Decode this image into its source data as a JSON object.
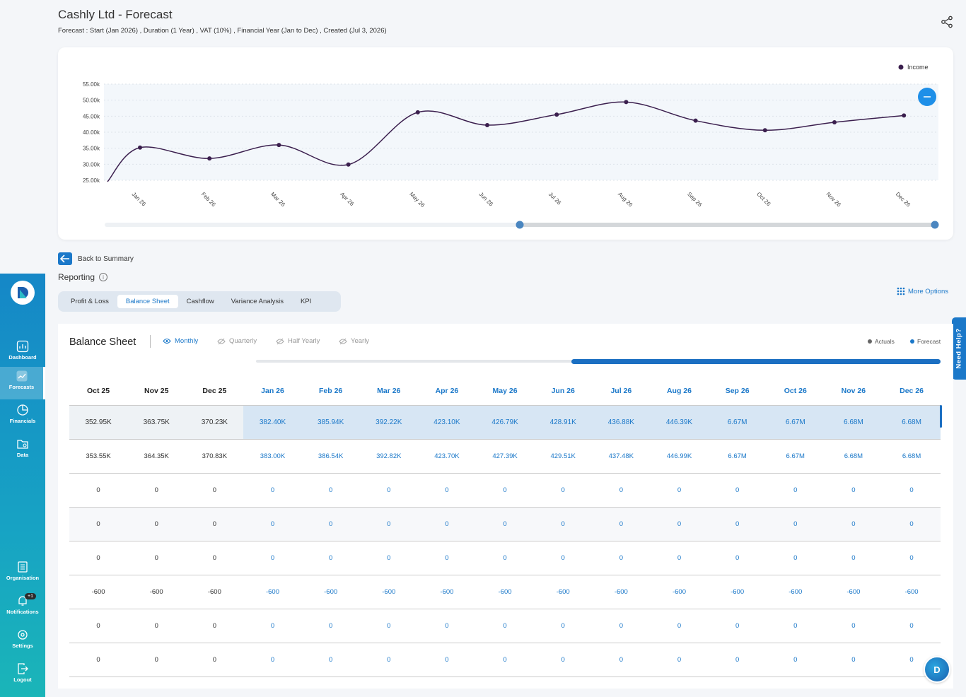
{
  "header": {
    "title": "Cashly Ltd - Forecast",
    "subtitle": "Forecast : Start (Jan 2026) ,  Duration (1 Year) ,  VAT (10%) , Financial Year (Jan to Dec) , Created (Jul 3, 2026)"
  },
  "chart_data": {
    "type": "line",
    "categories": [
      "Jan 26",
      "Feb 26",
      "Mar 26",
      "Apr 26",
      "May 26",
      "Jun 26",
      "Jul 26",
      "Aug 26",
      "Sep 26",
      "Oct 26",
      "Nov 26",
      "Dec 26"
    ],
    "series": [
      {
        "name": "Income",
        "values": [
          35200,
          31800,
          36000,
          29900,
          46200,
          42200,
          45500,
          49400,
          43600,
          40600,
          43100,
          45200
        ]
      }
    ],
    "y_ticks": [
      "55.00k",
      "50.00k",
      "45.00k",
      "40.00k",
      "35.00k",
      "30.00k",
      "25.00k"
    ],
    "ylim": [
      25000,
      55000
    ],
    "legend": "top-right",
    "line_color": "#3b1f4e"
  },
  "nav": {
    "back": "Back to Summary",
    "reporting": "Reporting",
    "tabs": [
      "Profit & Loss",
      "Balance Sheet",
      "Cashflow",
      "Variance Analysis",
      "KPI"
    ],
    "active_tab": "Balance Sheet",
    "more_options": "More Options",
    "need_help": "Need Help?"
  },
  "sidebar": {
    "items": [
      {
        "label": "Dashboard"
      },
      {
        "label": "Forecasts"
      },
      {
        "label": "Financials"
      },
      {
        "label": "Data"
      },
      {
        "label": "Organisation"
      },
      {
        "label": "Notifications",
        "badge": "+1"
      },
      {
        "label": "Settings"
      },
      {
        "label": "Logout"
      }
    ]
  },
  "balance_sheet": {
    "title": "Balance Sheet",
    "periods": [
      "Monthly",
      "Quarterly",
      "Half Yearly",
      "Yearly"
    ],
    "active_period": "Monthly",
    "legend": [
      "Actuals",
      "Forecast"
    ],
    "columns": [
      "Oct 25",
      "Nov 25",
      "Dec 25",
      "Jan 26",
      "Feb 26",
      "Mar 26",
      "Apr 26",
      "May 26",
      "Jun 26",
      "Jul 26",
      "Aug 26",
      "Sep 26",
      "Oct 26",
      "Nov 26",
      "Dec 26"
    ],
    "rows": [
      [
        "352.95K",
        "363.75K",
        "370.23K",
        "382.40K",
        "385.94K",
        "392.22K",
        "423.10K",
        "426.79K",
        "428.91K",
        "436.88K",
        "446.39K",
        "6.67M",
        "6.67M",
        "6.68M",
        "6.68M"
      ],
      [
        "353.55K",
        "364.35K",
        "370.83K",
        "383.00K",
        "386.54K",
        "392.82K",
        "423.70K",
        "427.39K",
        "429.51K",
        "437.48K",
        "446.99K",
        "6.67M",
        "6.67M",
        "6.68M",
        "6.68M"
      ],
      [
        "0",
        "0",
        "0",
        "0",
        "0",
        "0",
        "0",
        "0",
        "0",
        "0",
        "0",
        "0",
        "0",
        "0",
        "0"
      ],
      [
        "0",
        "0",
        "0",
        "0",
        "0",
        "0",
        "0",
        "0",
        "0",
        "0",
        "0",
        "0",
        "0",
        "0",
        "0"
      ],
      [
        "0",
        "0",
        "0",
        "0",
        "0",
        "0",
        "0",
        "0",
        "0",
        "0",
        "0",
        "0",
        "0",
        "0",
        "0"
      ],
      [
        "-600",
        "-600",
        "-600",
        "-600",
        "-600",
        "-600",
        "-600",
        "-600",
        "-600",
        "-600",
        "-600",
        "-600",
        "-600",
        "-600",
        "-600"
      ],
      [
        "0",
        "0",
        "0",
        "0",
        "0",
        "0",
        "0",
        "0",
        "0",
        "0",
        "0",
        "0",
        "0",
        "0",
        "0"
      ],
      [
        "0",
        "0",
        "0",
        "0",
        "0",
        "0",
        "0",
        "0",
        "0",
        "0",
        "0",
        "0",
        "0",
        "0",
        "0"
      ]
    ]
  },
  "colors": {
    "accent": "#1b78c9",
    "sidebar": "#1587c7"
  }
}
